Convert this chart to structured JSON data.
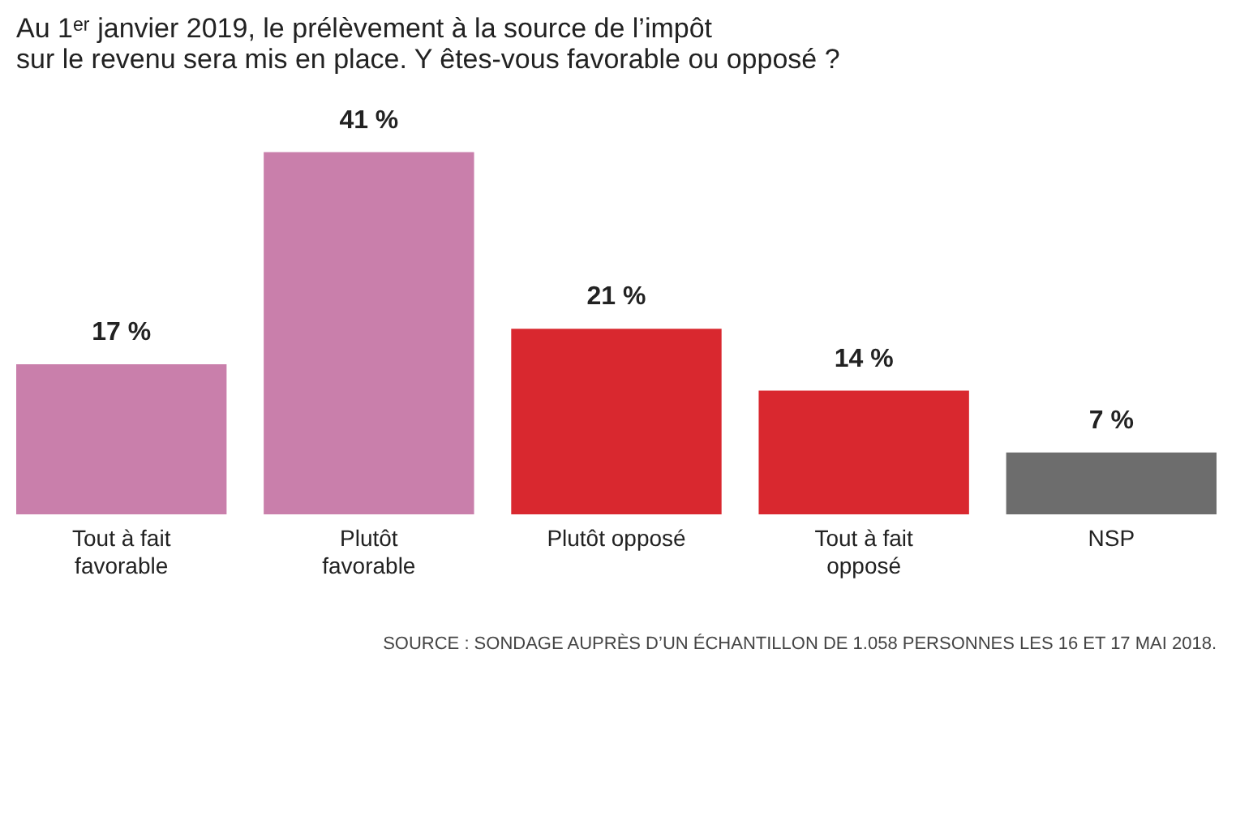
{
  "chart_data": {
    "type": "bar",
    "title": "Au 1ᵉʳ janvier 2019, le prélèvement à la source de l’impôt\nsur le revenu sera mis en place. Y êtes-vous favorable ou opposé ?",
    "categories": [
      "Tout à fait\nfavorable",
      "Plutôt\nfavorable",
      "Plutôt opposé",
      "Tout à fait\nopposé",
      "NSP"
    ],
    "values": [
      17,
      41,
      21,
      14,
      7
    ],
    "value_labels": [
      "17 %",
      "41 %",
      "21 %",
      "14 %",
      "7 %"
    ],
    "colors": [
      "#c97fab",
      "#c97fab",
      "#d9282f",
      "#d9282f",
      "#6d6d6d"
    ],
    "annotations": [
      "SOURCE : SONDAGE AUPRÈS D’UN ÉCHANTILLON DE 1.058 PERSONNES LES 16 ET 17 MAI 2018."
    ]
  }
}
